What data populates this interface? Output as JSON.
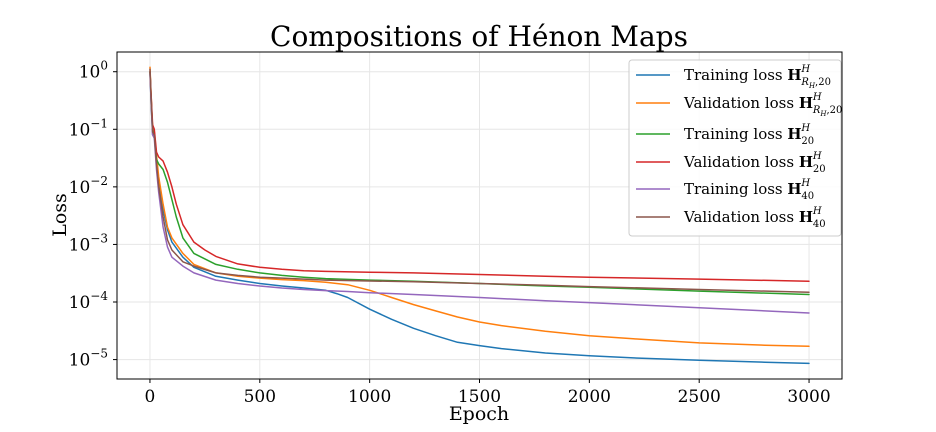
{
  "chart_data": {
    "type": "line",
    "title": "Compositions of Hénon Maps",
    "xlabel": "Epoch",
    "ylabel": "Loss",
    "y_scale": "log",
    "xlim": [
      -150,
      3150
    ],
    "ylim": [
      4.6e-06,
      2.2
    ],
    "x_ticks": [
      0,
      500,
      1000,
      1500,
      2000,
      2500,
      3000
    ],
    "x_tick_labels": [
      "0",
      "500",
      "1000",
      "1500",
      "2000",
      "2500",
      "3000"
    ],
    "y_ticks": [
      1e-05,
      0.0001,
      0.001,
      0.01,
      0.1,
      1
    ],
    "y_tick_labels": [
      {
        "base": "10",
        "exp": "−5"
      },
      {
        "base": "10",
        "exp": "−4"
      },
      {
        "base": "10",
        "exp": "−3"
      },
      {
        "base": "10",
        "exp": "−2"
      },
      {
        "base": "10",
        "exp": "−1"
      },
      {
        "base": "10",
        "exp": "0"
      }
    ],
    "grid": true,
    "legend_position": "top-right",
    "series": [
      {
        "name": "Training loss",
        "symbol": "H",
        "sup": "H",
        "sub": "R",
        "sub_sub": "H",
        "sub_tail": ",20",
        "color": "#1f77b4",
        "points": [
          [
            0,
            1.0
          ],
          [
            5,
            0.3
          ],
          [
            12,
            0.08
          ],
          [
            20,
            0.09
          ],
          [
            30,
            0.03
          ],
          [
            40,
            0.012
          ],
          [
            60,
            0.004
          ],
          [
            80,
            0.0018
          ],
          [
            100,
            0.0011
          ],
          [
            150,
            0.0006
          ],
          [
            200,
            0.0004
          ],
          [
            300,
            0.00028
          ],
          [
            400,
            0.00024
          ],
          [
            500,
            0.00021
          ],
          [
            600,
            0.00019
          ],
          [
            700,
            0.000175
          ],
          [
            800,
            0.00016
          ],
          [
            850,
            0.00014
          ],
          [
            900,
            0.00012
          ],
          [
            1000,
            7.5e-05
          ],
          [
            1100,
            5e-05
          ],
          [
            1200,
            3.5e-05
          ],
          [
            1300,
            2.6e-05
          ],
          [
            1400,
            2e-05
          ],
          [
            1500,
            1.75e-05
          ],
          [
            1600,
            1.55e-05
          ],
          [
            1800,
            1.3e-05
          ],
          [
            2000,
            1.17e-05
          ],
          [
            2200,
            1.07e-05
          ],
          [
            2500,
            9.7e-06
          ],
          [
            2800,
            9e-06
          ],
          [
            3000,
            8.6e-06
          ]
        ]
      },
      {
        "name": "Validation loss",
        "symbol": "H",
        "sup": "H",
        "sub": "R",
        "sub_sub": "H",
        "sub_tail": ",20",
        "color": "#ff7f0e",
        "points": [
          [
            0,
            1.2
          ],
          [
            5,
            0.4
          ],
          [
            12,
            0.1
          ],
          [
            20,
            0.09
          ],
          [
            30,
            0.035
          ],
          [
            40,
            0.015
          ],
          [
            60,
            0.005
          ],
          [
            80,
            0.002
          ],
          [
            100,
            0.0013
          ],
          [
            150,
            0.0007
          ],
          [
            200,
            0.00045
          ],
          [
            300,
            0.00032
          ],
          [
            400,
            0.00028
          ],
          [
            500,
            0.00026
          ],
          [
            600,
            0.000245
          ],
          [
            700,
            0.000235
          ],
          [
            800,
            0.00022
          ],
          [
            900,
            0.0002
          ],
          [
            1000,
            0.00016
          ],
          [
            1100,
            0.00012
          ],
          [
            1200,
            9e-05
          ],
          [
            1300,
            7e-05
          ],
          [
            1400,
            5.5e-05
          ],
          [
            1500,
            4.5e-05
          ],
          [
            1600,
            3.9e-05
          ],
          [
            1800,
            3.1e-05
          ],
          [
            2000,
            2.6e-05
          ],
          [
            2200,
            2.3e-05
          ],
          [
            2500,
            1.95e-05
          ],
          [
            2800,
            1.78e-05
          ],
          [
            3000,
            1.7e-05
          ]
        ]
      },
      {
        "name": "Training loss",
        "symbol": "H",
        "sup": "H",
        "sub": "20",
        "color": "#2ca02c",
        "points": [
          [
            0,
            1.0
          ],
          [
            5,
            0.35
          ],
          [
            12,
            0.1
          ],
          [
            20,
            0.08
          ],
          [
            30,
            0.03
          ],
          [
            40,
            0.025
          ],
          [
            60,
            0.02
          ],
          [
            80,
            0.012
          ],
          [
            100,
            0.006
          ],
          [
            120,
            0.003
          ],
          [
            150,
            0.0013
          ],
          [
            200,
            0.0007
          ],
          [
            300,
            0.00045
          ],
          [
            400,
            0.00037
          ],
          [
            500,
            0.00032
          ],
          [
            600,
            0.00029
          ],
          [
            700,
            0.00027
          ],
          [
            800,
            0.000255
          ],
          [
            1000,
            0.00024
          ],
          [
            1200,
            0.00023
          ],
          [
            1500,
            0.00021
          ],
          [
            1800,
            0.00019
          ],
          [
            2000,
            0.00018
          ],
          [
            2500,
            0.000155
          ],
          [
            3000,
            0.000135
          ]
        ]
      },
      {
        "name": "Validation loss",
        "symbol": "H",
        "sup": "H",
        "sub": "20",
        "color": "#d62728",
        "points": [
          [
            0,
            1.0
          ],
          [
            5,
            0.4
          ],
          [
            12,
            0.12
          ],
          [
            20,
            0.1
          ],
          [
            30,
            0.04
          ],
          [
            40,
            0.033
          ],
          [
            60,
            0.028
          ],
          [
            80,
            0.018
          ],
          [
            100,
            0.01
          ],
          [
            120,
            0.005
          ],
          [
            150,
            0.0022
          ],
          [
            200,
            0.0011
          ],
          [
            250,
            0.0008
          ],
          [
            300,
            0.00062
          ],
          [
            400,
            0.00046
          ],
          [
            500,
            0.0004
          ],
          [
            600,
            0.00037
          ],
          [
            700,
            0.00035
          ],
          [
            800,
            0.00034
          ],
          [
            1000,
            0.00033
          ],
          [
            1200,
            0.00032
          ],
          [
            1500,
            0.0003
          ],
          [
            1800,
            0.00028
          ],
          [
            2000,
            0.00027
          ],
          [
            2500,
            0.00025
          ],
          [
            3000,
            0.00023
          ]
        ]
      },
      {
        "name": "Training loss",
        "symbol": "H",
        "sup": "H",
        "sub": "40",
        "color": "#9467bd",
        "points": [
          [
            0,
            0.9
          ],
          [
            5,
            0.3
          ],
          [
            12,
            0.08
          ],
          [
            20,
            0.07
          ],
          [
            30,
            0.02
          ],
          [
            40,
            0.008
          ],
          [
            60,
            0.002
          ],
          [
            80,
            0.0009
          ],
          [
            100,
            0.0006
          ],
          [
            150,
            0.00042
          ],
          [
            200,
            0.00032
          ],
          [
            300,
            0.00024
          ],
          [
            400,
            0.00021
          ],
          [
            500,
            0.00019
          ],
          [
            600,
            0.000175
          ],
          [
            700,
            0.000165
          ],
          [
            800,
            0.000158
          ],
          [
            900,
            0.000152
          ],
          [
            1000,
            0.000145
          ],
          [
            1200,
            0.000135
          ],
          [
            1500,
            0.00012
          ],
          [
            1800,
            0.000105
          ],
          [
            2000,
            9.75e-05
          ],
          [
            2500,
            7.95e-05
          ],
          [
            3000,
            6.45e-05
          ]
        ]
      },
      {
        "name": "Validation loss",
        "symbol": "H",
        "sup": "H",
        "sub": "40",
        "color": "#8c564b",
        "points": [
          [
            0,
            1.1
          ],
          [
            5,
            0.35
          ],
          [
            12,
            0.09
          ],
          [
            20,
            0.08
          ],
          [
            30,
            0.025
          ],
          [
            40,
            0.01
          ],
          [
            60,
            0.003
          ],
          [
            80,
            0.0012
          ],
          [
            100,
            0.0008
          ],
          [
            150,
            0.0005
          ],
          [
            200,
            0.00042
          ],
          [
            300,
            0.00032
          ],
          [
            400,
            0.00029
          ],
          [
            500,
            0.00027
          ],
          [
            600,
            0.00026
          ],
          [
            700,
            0.00025
          ],
          [
            800,
            0.00024
          ],
          [
            1000,
            0.000232
          ],
          [
            1200,
            0.000225
          ],
          [
            1500,
            0.00021
          ],
          [
            1800,
            0.000195
          ],
          [
            2000,
            0.000185
          ],
          [
            2500,
            0.000165
          ],
          [
            3000,
            0.000148
          ]
        ]
      }
    ]
  }
}
